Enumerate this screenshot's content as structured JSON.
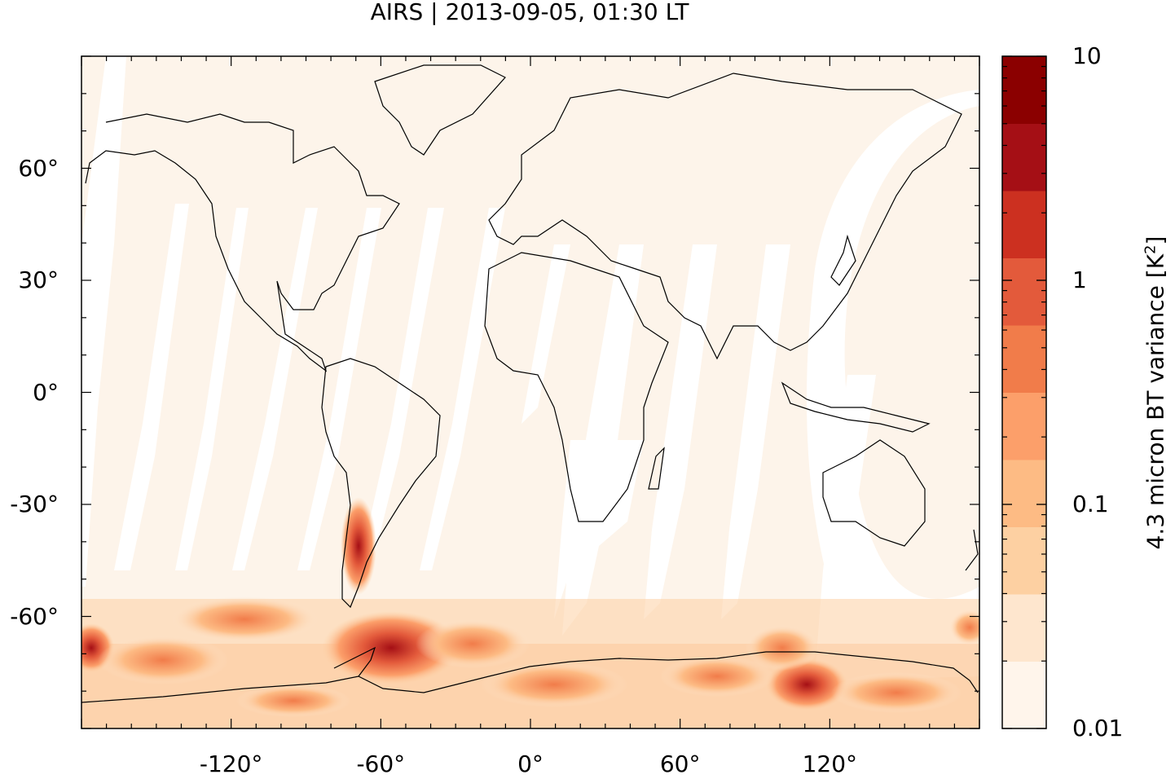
{
  "title": "AIRS | 2013-09-05, 01:30 LT",
  "map": {
    "projection": "equirectangular",
    "lon_range": [
      -180,
      180
    ],
    "lat_range": [
      -90,
      90
    ],
    "lat_ticks": [
      {
        "value": 60,
        "label": "60°"
      },
      {
        "value": 30,
        "label": "30°"
      },
      {
        "value": 0,
        "label": "0°"
      },
      {
        "value": -30,
        "label": "-30°"
      },
      {
        "value": -60,
        "label": "-60°"
      }
    ],
    "lon_ticks": [
      {
        "value": -120,
        "label": "-120°"
      },
      {
        "value": -60,
        "label": "-60°"
      },
      {
        "value": 0,
        "label": "0°"
      },
      {
        "value": 60,
        "label": "60°"
      },
      {
        "value": 120,
        "label": "120°"
      }
    ],
    "background_color": "#fdf4ea",
    "coastline_color": "#000000"
  },
  "colorbar": {
    "label_text": "4.3 micron BT variance [K",
    "label_superscript": "2",
    "label_close": "]",
    "scale": "log",
    "range": [
      0.01,
      10
    ],
    "tick_labels": [
      {
        "value": 10,
        "label": "10"
      },
      {
        "value": 1,
        "label": "1"
      },
      {
        "value": 0.1,
        "label": "0.1"
      },
      {
        "value": 0.01,
        "label": "0.01"
      }
    ],
    "colors_bottom_to_top": [
      "#fff5eb",
      "#fee6ce",
      "#fdd0a2",
      "#fdbb84",
      "#fc9f6a",
      "#f17c4a",
      "#e35a3b",
      "#cc3020",
      "#a50f15",
      "#8b0000"
    ]
  }
}
